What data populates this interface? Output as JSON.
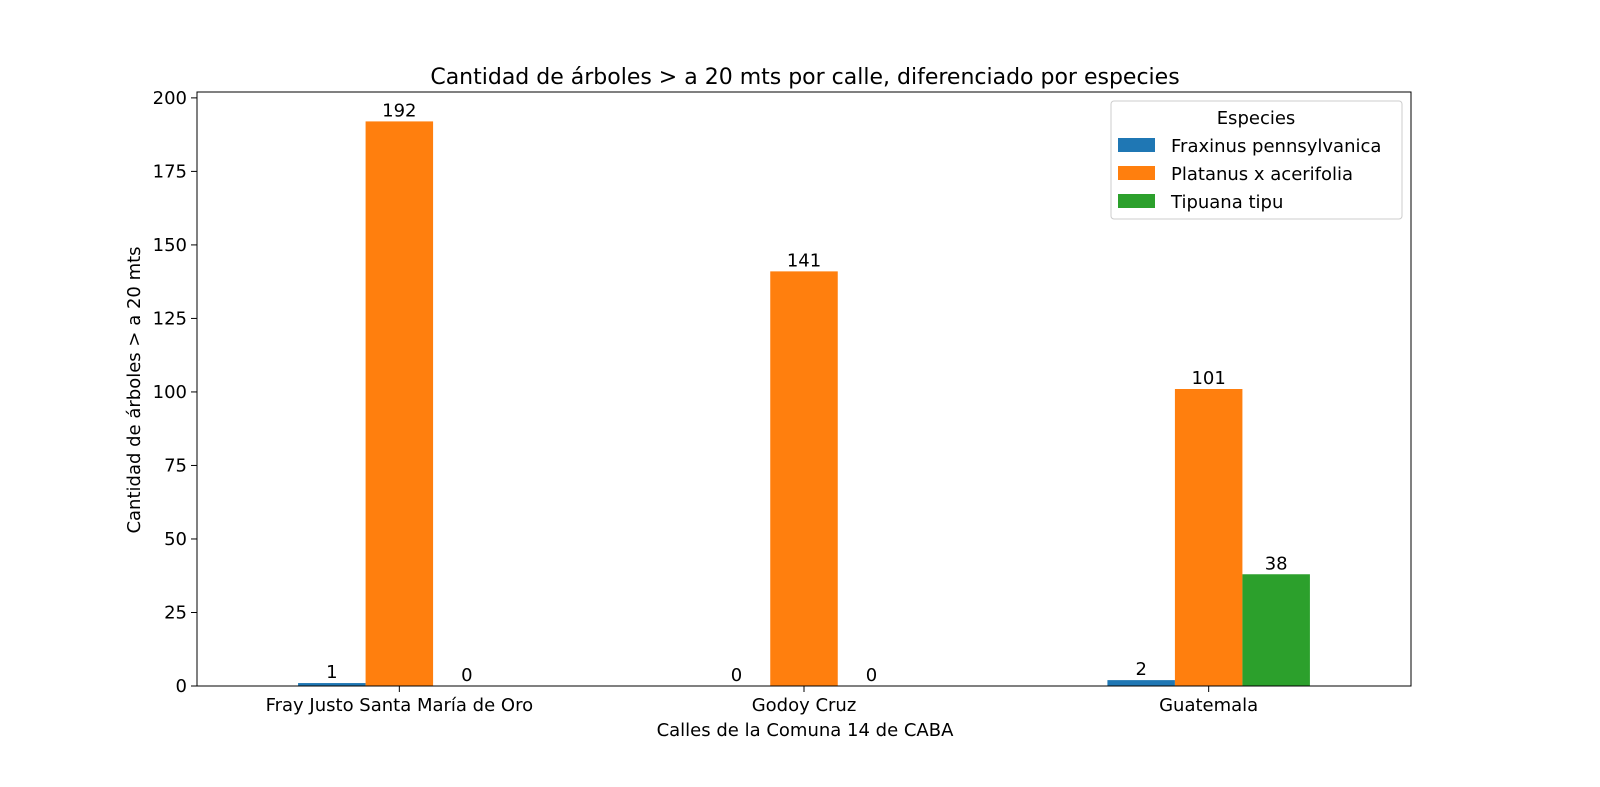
{
  "chart_data": {
    "type": "bar",
    "title": "Cantidad de árboles > a 20 mts por calle, diferenciado por especies",
    "xlabel": "Calles de la Comuna 14 de CABA",
    "ylabel": "Cantidad de árboles > a 20 mts",
    "categories": [
      "Fray Justo Santa María de Oro",
      "Godoy Cruz",
      "Guatemala"
    ],
    "series": [
      {
        "name": "Fraxinus pennsylvanica",
        "color": "#1f77b4",
        "values": [
          1,
          0,
          2
        ]
      },
      {
        "name": "Platanus x acerifolia",
        "color": "#ff7f0e",
        "values": [
          192,
          141,
          101
        ]
      },
      {
        "name": "Tipuana tipu",
        "color": "#2ca02c",
        "values": [
          0,
          0,
          38
        ]
      }
    ],
    "ylim": [
      0,
      202
    ],
    "yticks": [
      0,
      25,
      50,
      75,
      100,
      125,
      150,
      175,
      200
    ],
    "legend": {
      "title": "Especies",
      "placement": "top-right"
    },
    "grid": false
  }
}
